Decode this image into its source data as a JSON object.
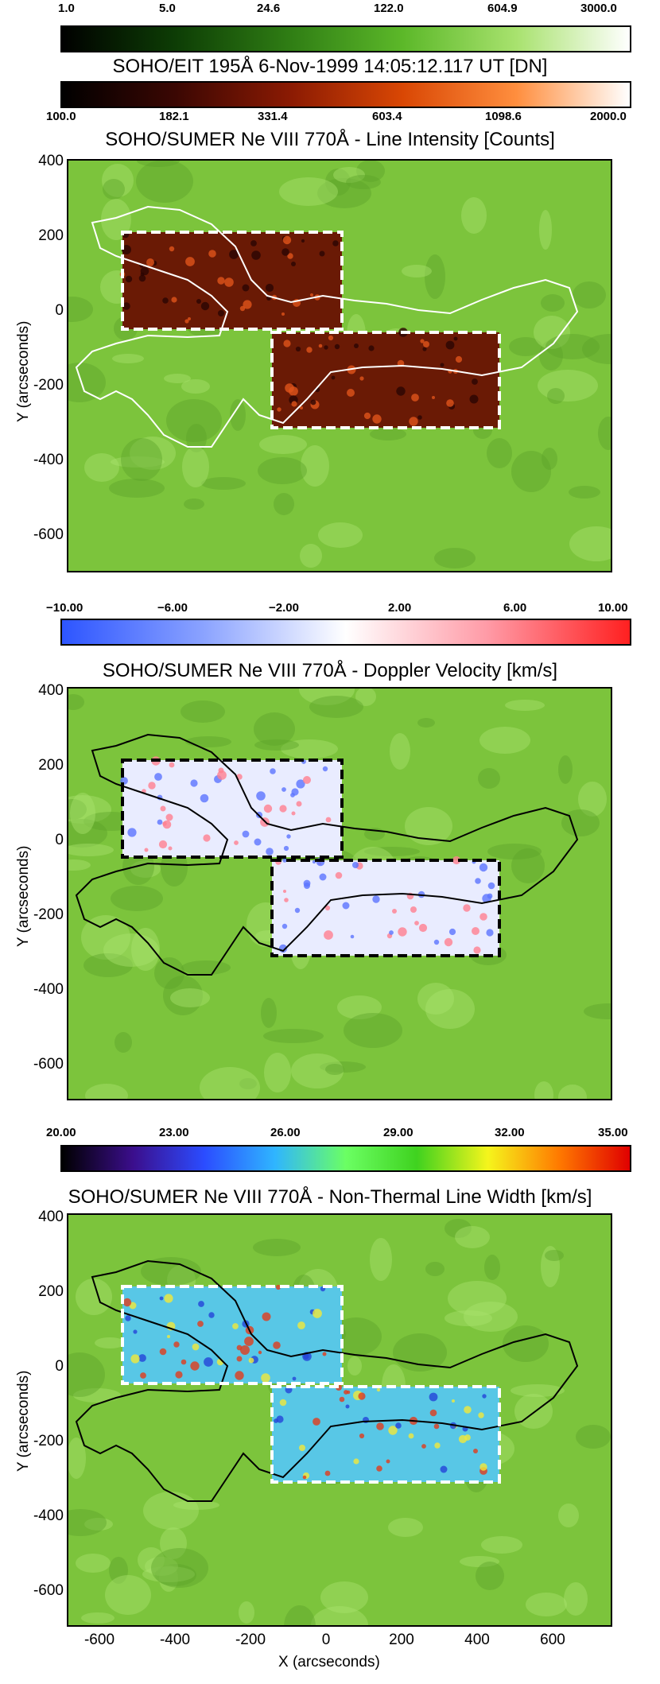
{
  "colorbars": {
    "eit": {
      "ticks": [
        "1.0",
        "5.0",
        "24.6",
        "122.0",
        "604.9",
        "3000.0"
      ],
      "colors": [
        "#000000",
        "#0d3d05",
        "#2f7d14",
        "#5cb829",
        "#a8e26e",
        "#ffffff"
      ]
    },
    "sumer_intensity": {
      "ticks": [
        "100.0",
        "182.1",
        "331.4",
        "603.4",
        "1098.6",
        "2000.0"
      ],
      "colors": [
        "#000000",
        "#3b0703",
        "#8a1a03",
        "#d94704",
        "#ff8e3e",
        "#ffffff"
      ]
    },
    "doppler": {
      "ticks": [
        "−10.00",
        "−6.00",
        "−2.00",
        "2.00",
        "6.00",
        "10.00"
      ],
      "colors": [
        "#2d55ff",
        "#8ba3ff",
        "#ffffff",
        "#ff9aa6",
        "#ff2020"
      ]
    },
    "width": {
      "ticks": [
        "20.00",
        "23.00",
        "26.00",
        "29.00",
        "32.00",
        "35.00"
      ],
      "colors": [
        "#000000",
        "#3b0e8c",
        "#2b4cff",
        "#2fb5ff",
        "#6bff63",
        "#3fd21f",
        "#f5f51c",
        "#ff7a00",
        "#e00000"
      ]
    }
  },
  "titles": {
    "eit": "SOHO/EIT 195Å  6-Nov-1999 14:05:12.117 UT [DN]",
    "intensity": "SOHO/SUMER Ne VIII 770Å - Line Intensity [Counts]",
    "doppler": "SOHO/SUMER Ne VIII 770Å - Doppler Velocity [km/s]",
    "width": "SOHO/SUMER Ne VIII 770Å - Non-Thermal Line Width [km/s]"
  },
  "axes": {
    "ylabel": "Y (arcseconds)",
    "xlabel": "X (arcseconds)",
    "yticks": [
      "400",
      "200",
      "0",
      "-200",
      "-400",
      "-600"
    ],
    "xticks": [
      "-600",
      "-400",
      "-200",
      "0",
      "200",
      "400",
      "600"
    ]
  },
  "panel_style": {
    "background": "#7cc43c",
    "rasters": [
      {
        "fill": "#6a1a05",
        "border": "#ffffff",
        "contour": "#ffffff"
      },
      {
        "fill": "#e9ecff",
        "border": "#000000",
        "contour": "#000000"
      },
      {
        "fill": "#58c7e6",
        "border": "#ffffff",
        "contour": "#000000"
      }
    ]
  }
}
